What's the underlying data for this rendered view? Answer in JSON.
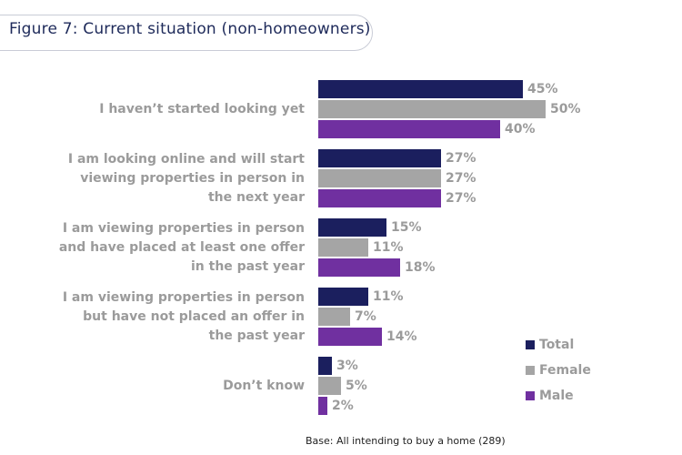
{
  "title": "Figure 7: Current situation (non-homeowners)",
  "base_note": "Base: All intending to buy a home (289)",
  "colors": {
    "Total": "#1b1f5e",
    "Female": "#a5a5a5",
    "Male": "#7030a0"
  },
  "chart_data": {
    "type": "bar",
    "orientation": "horizontal",
    "title": "Figure 7: Current situation (non-homeowners)",
    "categories": [
      [
        "I haven’t started looking yet"
      ],
      [
        "I am looking online and will start",
        "viewing properties in person in",
        "the next year"
      ],
      [
        "I am viewing properties in person",
        "and have placed at least one offer",
        "in the past year"
      ],
      [
        "I am viewing properties in person",
        "but have not placed an offer in",
        "the past year"
      ],
      [
        "Don’t know"
      ]
    ],
    "series": [
      {
        "name": "Total",
        "values": [
          45,
          27,
          15,
          11,
          3
        ]
      },
      {
        "name": "Female",
        "values": [
          50,
          27,
          11,
          7,
          5
        ]
      },
      {
        "name": "Male",
        "values": [
          40,
          27,
          18,
          14,
          2
        ]
      }
    ],
    "unit": "%",
    "legend": [
      "Total",
      "Female",
      "Male"
    ],
    "legend_position": "bottom-right",
    "grid": false
  }
}
